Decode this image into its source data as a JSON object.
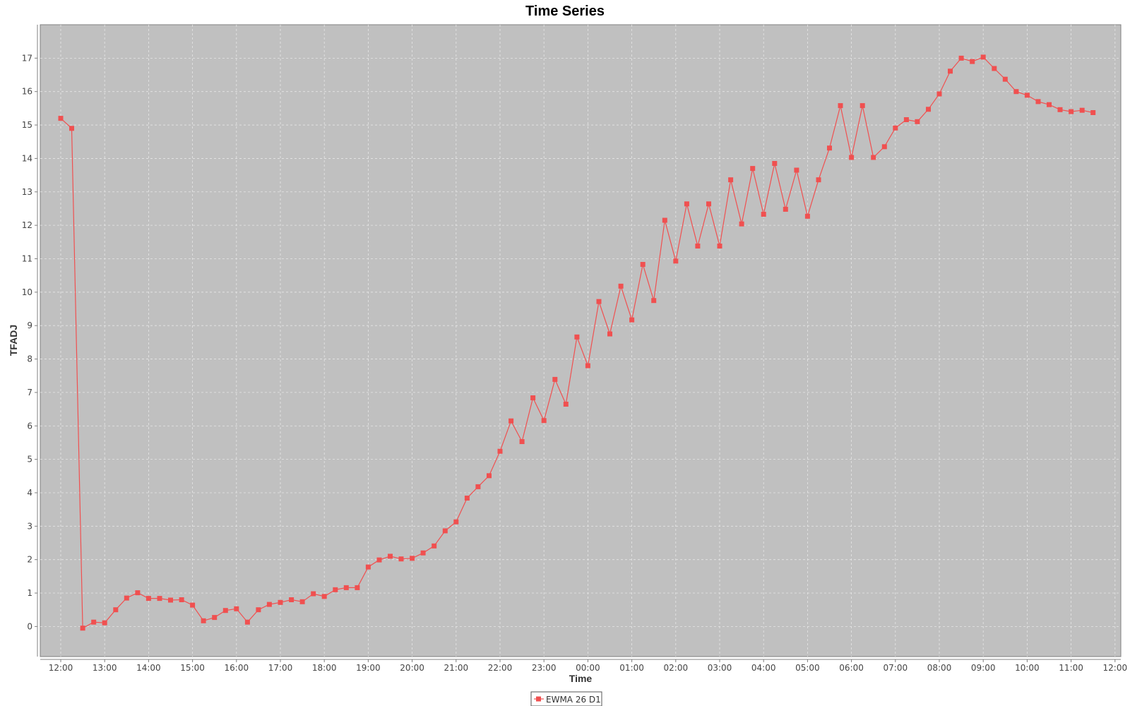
{
  "chart_data": {
    "type": "line",
    "title": "Time Series",
    "xlabel": "Time",
    "ylabel": "TFADJ",
    "ylim": [
      -0.9,
      18
    ],
    "x_tick_labels": [
      "12:00",
      "13:00",
      "14:00",
      "15:00",
      "16:00",
      "17:00",
      "18:00",
      "19:00",
      "20:00",
      "21:00",
      "22:00",
      "23:00",
      "00:00",
      "01:00",
      "02:00",
      "03:00",
      "04:00",
      "05:00",
      "06:00",
      "07:00",
      "08:00",
      "09:00",
      "10:00",
      "11:00",
      "12:00"
    ],
    "y_ticks": [
      0,
      1,
      2,
      3,
      4,
      5,
      6,
      7,
      8,
      9,
      10,
      11,
      12,
      13,
      14,
      15,
      16,
      17
    ],
    "x_step_minutes": 15,
    "grid": true,
    "legend_position": "bottom-center",
    "colors": {
      "plot_background": "#c0c0c0",
      "series": "#f05050",
      "grid": "#e6e6e6"
    },
    "series": [
      {
        "name": "EWMA 26 D1",
        "values": [
          15.2,
          14.9,
          -0.05,
          0.13,
          0.11,
          0.5,
          0.85,
          1.01,
          0.84,
          0.84,
          0.79,
          0.8,
          0.64,
          0.17,
          0.27,
          0.48,
          0.53,
          0.13,
          0.5,
          0.66,
          0.72,
          0.8,
          0.74,
          0.98,
          0.9,
          1.1,
          1.16,
          1.16,
          1.78,
          1.99,
          2.1,
          2.02,
          2.04,
          2.2,
          2.41,
          2.86,
          3.13,
          3.84,
          4.18,
          4.51,
          5.24,
          6.15,
          5.53,
          6.84,
          6.16,
          7.39,
          6.65,
          8.66,
          7.8,
          9.72,
          8.75,
          10.18,
          9.17,
          10.83,
          9.75,
          12.15,
          10.93,
          12.64,
          11.38,
          12.64,
          11.38,
          13.36,
          12.04,
          13.7,
          12.33,
          13.85,
          12.48,
          13.65,
          12.27,
          13.36,
          14.31,
          15.58,
          14.03,
          15.58,
          14.03,
          14.35,
          14.91,
          15.16,
          15.1,
          15.47,
          15.93,
          16.61,
          17.0,
          16.9,
          17.03,
          16.69,
          16.37,
          16.0,
          15.89,
          15.7,
          15.61,
          15.46,
          15.4,
          15.44,
          15.37
        ]
      }
    ]
  }
}
